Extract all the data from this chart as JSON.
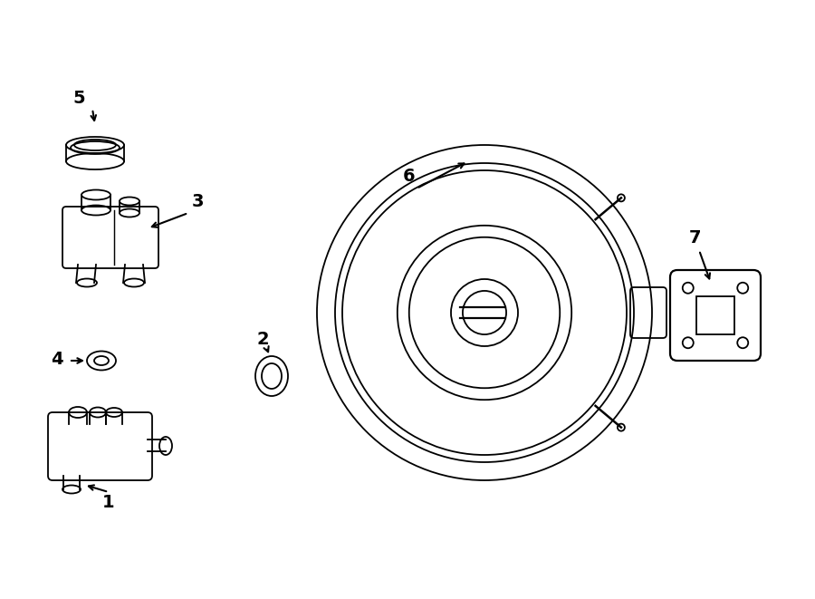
{
  "background_color": "#ffffff",
  "line_color": "#000000",
  "label_color": "#000000"
}
